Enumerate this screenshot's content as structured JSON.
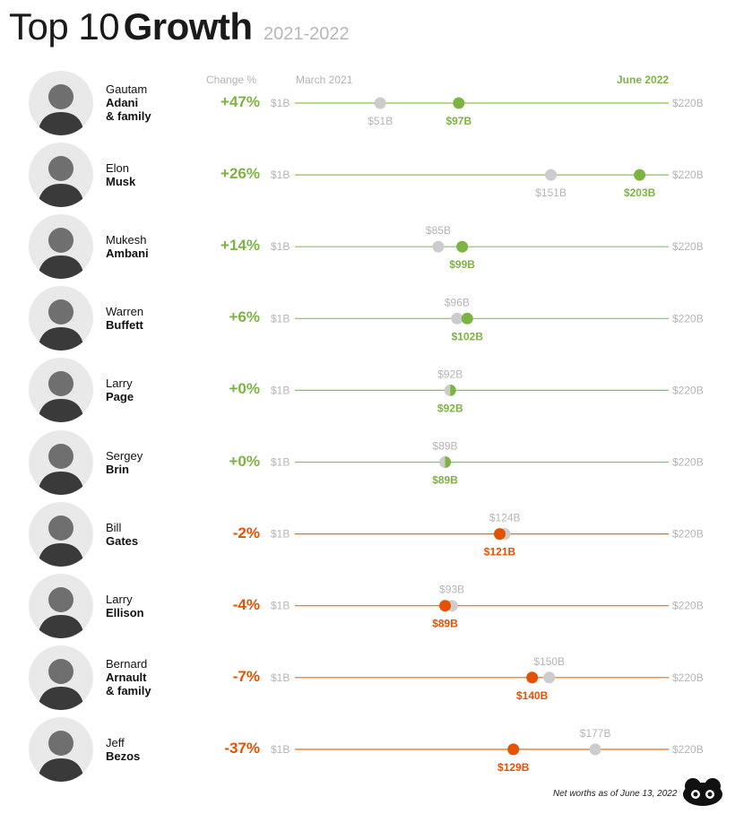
{
  "header": {
    "title_light": "Top 10",
    "title_bold": "Growth",
    "years": "2021-2022"
  },
  "columns": {
    "change": "Change %",
    "start": "March 2021",
    "end": "June 2022"
  },
  "scale": {
    "min_label": "$1B",
    "max_label": "$220B"
  },
  "colors": {
    "positive": "#7cb342",
    "negative": "#e65100",
    "start_dot": "#cccccc",
    "line_pos": "#8bc34a",
    "line_neg": "#ef6c00"
  },
  "footnote": "Net worths as of June 13, 2022",
  "chart_data": {
    "type": "dumbbell",
    "xlim": [
      1,
      220
    ],
    "people": [
      {
        "first": "Gautam",
        "last": "Adani",
        "extra": "& family",
        "change": "+47%",
        "march2021": 51,
        "june2022": 97,
        "march_label": "$51B",
        "june_label": "$97B",
        "direction": "up"
      },
      {
        "first": "Elon",
        "last": "Musk",
        "extra": "",
        "change": "+26%",
        "march2021": 151,
        "june2022": 203,
        "march_label": "$151B",
        "june_label": "$203B",
        "direction": "up"
      },
      {
        "first": "Mukesh",
        "last": "Ambani",
        "extra": "",
        "change": "+14%",
        "march2021": 85,
        "june2022": 99,
        "march_label": "$85B",
        "june_label": "$99B",
        "direction": "up"
      },
      {
        "first": "Warren",
        "last": "Buffett",
        "extra": "",
        "change": "+6%",
        "march2021": 96,
        "june2022": 102,
        "march_label": "$96B",
        "june_label": "$102B",
        "direction": "up"
      },
      {
        "first": "Larry",
        "last": "Page",
        "extra": "",
        "change": "+0%",
        "march2021": 92,
        "june2022": 92,
        "march_label": "$92B",
        "june_label": "$92B",
        "direction": "flat"
      },
      {
        "first": "Sergey",
        "last": "Brin",
        "extra": "",
        "change": "+0%",
        "march2021": 89,
        "june2022": 89,
        "march_label": "$89B",
        "june_label": "$89B",
        "direction": "flat"
      },
      {
        "first": "Bill",
        "last": "Gates",
        "extra": "",
        "change": "-2%",
        "march2021": 124,
        "june2022": 121,
        "march_label": "$124B",
        "june_label": "$121B",
        "direction": "down"
      },
      {
        "first": "Larry",
        "last": "Ellison",
        "extra": "",
        "change": "-4%",
        "march2021": 93,
        "june2022": 89,
        "march_label": "$93B",
        "june_label": "$89B",
        "direction": "down"
      },
      {
        "first": "Bernard",
        "last": "Arnault",
        "extra": "& family",
        "change": "-7%",
        "march2021": 150,
        "june2022": 140,
        "march_label": "$150B",
        "june_label": "$140B",
        "direction": "down"
      },
      {
        "first": "Jeff",
        "last": "Bezos",
        "extra": "",
        "change": "-37%",
        "march2021": 177,
        "june2022": 129,
        "march_label": "$177B",
        "june_label": "$129B",
        "direction": "down"
      }
    ]
  }
}
